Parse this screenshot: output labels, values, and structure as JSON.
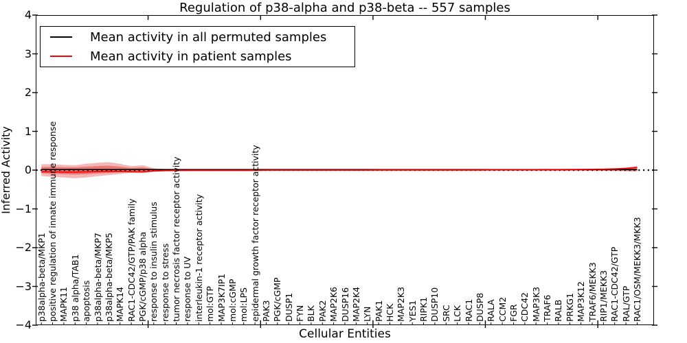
{
  "title": "Regulation of p38-alpha and p38-beta -- 557 samples",
  "axes": {
    "x_label": "Cellular Entities",
    "y_label": "Inferred Activity",
    "y_ticks": [
      "4",
      "3",
      "2",
      "1",
      "0",
      "−1",
      "−2",
      "−3",
      "−4"
    ]
  },
  "legend": {
    "items": [
      {
        "label": "Mean activity in all permuted samples",
        "color": "#000000"
      },
      {
        "label": "Mean activity in patient samples",
        "color": "#ff0000"
      }
    ]
  },
  "chart_data": {
    "type": "line",
    "title": "Regulation of p38-alpha and p38-beta -- 557 samples",
    "xlabel": "Cellular Entities",
    "ylabel": "Inferred Activity",
    "ylim": [
      -4,
      4
    ],
    "xlim": [
      0,
      55
    ],
    "x_major_ticks": [
      10,
      20,
      30,
      40,
      50
    ],
    "grid": false,
    "legend_position": "upper left",
    "zero_line_style": "dotted",
    "categories": [
      "p38alpha-beta/MKP1",
      "positive regulation of innate immune response",
      "MAPK11",
      "p38 alpha/TAB1",
      "apoptosis",
      "p38alpha-beta/MKP7",
      "p38alpha-beta/MKP5",
      "MAPK14",
      "RAC1-CDC42/GTP/PAK family",
      "PGK/cGMP/p38 alpha",
      "response to insulin stimulus",
      "response to stress",
      "tumor necrosis factor receptor activity",
      "response to UV",
      "interleukin-1 receptor activity",
      "mol:GTP",
      "MAP3K7IP1",
      "mol:cGMP",
      "mol:LPS",
      "epidermal growth factor receptor activity",
      "PAK3",
      "PGK/cGMP",
      "DUSP1",
      "FYN",
      "BLK",
      "PAK2",
      "MAP2K6",
      "DUSP16",
      "MAP2K4",
      "LYN",
      "PAK1",
      "HCK",
      "MAP2K3",
      "YES1",
      "RIPK1",
      "DUSP10",
      "SRC",
      "LCK",
      "RAC1",
      "DUSP8",
      "RALA",
      "CCM2",
      "FGR",
      "CDC42",
      "MAP3K3",
      "TRAF6",
      "RALB",
      "PRKG1",
      "MAP3K12",
      "TRAF6/MEKK3",
      "RIP1/MEKK3",
      "RAC1-CDC42/GTP",
      "RAL/GTP",
      "RAC1/OSM/MEKK3/MKK3"
    ],
    "series": [
      {
        "name": "Mean activity in all permuted samples",
        "color": "#000000",
        "values": [
          0.015,
          0.015,
          0.015,
          0.015,
          0.015,
          0.015,
          0.015,
          0.015,
          0.015,
          0.015,
          0.015,
          0.015,
          0.015,
          0.015,
          0.015,
          0.015,
          0.015,
          0.015,
          0.015,
          0.015,
          0.015,
          0.015,
          0.015,
          0.015,
          0.015,
          0.015,
          0.015,
          0.015,
          0.015,
          0.015,
          0.015,
          0.015,
          0.015,
          0.015,
          0.015,
          0.015,
          0.015,
          0.015,
          0.015,
          0.015,
          0.015,
          0.015,
          0.015,
          0.015,
          0.015,
          0.015,
          0.015,
          0.015,
          0.015,
          0.015,
          0.015,
          0.015,
          0.015,
          0.015
        ]
      },
      {
        "name": "Mean activity in patient samples",
        "color": "#ff0000",
        "values": [
          -0.04,
          -0.045,
          -0.05,
          -0.05,
          -0.045,
          -0.035,
          -0.03,
          -0.035,
          -0.04,
          -0.045,
          -0.02,
          -0.01,
          -0.008,
          -0.005,
          -0.005,
          -0.005,
          -0.005,
          -0.005,
          -0.005,
          -0.005,
          0,
          0,
          0,
          0,
          0,
          0,
          0,
          0,
          0,
          0,
          0.005,
          0.005,
          0.005,
          0.005,
          0.005,
          0.005,
          0.005,
          0.005,
          0.005,
          0.005,
          0.01,
          0.01,
          0.01,
          0.01,
          0.01,
          0.012,
          0.012,
          0.015,
          0.018,
          0.02,
          0.025,
          0.032,
          0.045,
          0.07
        ]
      }
    ],
    "bands": {
      "fill_outer": "rgba(227,66,66,0.38)",
      "fill_inner": "rgba(219,44,44,0.46)",
      "outer_upper": [
        0.15,
        0.155,
        0.135,
        0.125,
        0.165,
        0.19,
        0.205,
        0.165,
        0.105,
        0.125,
        0.05,
        0.03,
        0.025,
        0.025,
        0.02,
        0.02,
        0.02,
        0.02,
        0.02,
        0.02,
        0.02,
        0.02,
        0.02,
        0.02,
        0.02,
        0.02,
        0.02,
        0.02,
        0.02,
        0.02,
        0.02,
        0.02,
        0.02,
        0.02,
        0.02,
        0.02,
        0.02,
        0.02,
        0.02,
        0.02,
        0.02,
        0.02,
        0.02,
        0.02,
        0.02,
        0.02,
        0.02,
        0.02,
        0.02,
        0.02,
        0.03,
        0.04,
        0.06,
        0.1
      ],
      "outer_lower": [
        -0.15,
        -0.175,
        -0.19,
        -0.21,
        -0.19,
        -0.155,
        -0.13,
        -0.1,
        -0.065,
        -0.08,
        -0.045,
        -0.03,
        -0.025,
        -0.022,
        -0.02,
        -0.02,
        -0.02,
        -0.02,
        -0.02,
        -0.02,
        -0.02,
        -0.02,
        -0.02,
        -0.02,
        -0.02,
        -0.02,
        -0.02,
        -0.02,
        -0.02,
        -0.02,
        -0.02,
        -0.02,
        -0.02,
        -0.02,
        -0.02,
        -0.02,
        -0.02,
        -0.02,
        -0.02,
        -0.02,
        -0.02,
        -0.02,
        -0.02,
        -0.02,
        -0.02,
        -0.02,
        -0.02,
        -0.02,
        -0.02,
        -0.02,
        -0.022,
        -0.025,
        -0.03,
        -0.04
      ],
      "inner_upper": [
        0.08,
        0.085,
        0.075,
        0.07,
        0.09,
        0.105,
        0.115,
        0.09,
        0.055,
        0.07,
        0.03,
        0.018,
        0.014,
        0.013,
        0.012,
        0.012,
        0.012,
        0.012,
        0.012,
        0.012,
        0.012,
        0.012,
        0.012,
        0.012,
        0.012,
        0.012,
        0.012,
        0.012,
        0.012,
        0.012,
        0.012,
        0.012,
        0.012,
        0.012,
        0.012,
        0.012,
        0.012,
        0.012,
        0.012,
        0.012,
        0.012,
        0.012,
        0.012,
        0.012,
        0.012,
        0.012,
        0.012,
        0.012,
        0.012,
        0.012,
        0.018,
        0.022,
        0.035,
        0.055
      ],
      "inner_lower": [
        -0.08,
        -0.095,
        -0.105,
        -0.115,
        -0.105,
        -0.085,
        -0.07,
        -0.055,
        -0.04,
        -0.045,
        -0.025,
        -0.018,
        -0.014,
        -0.013,
        -0.012,
        -0.012,
        -0.012,
        -0.012,
        -0.012,
        -0.012,
        -0.012,
        -0.012,
        -0.012,
        -0.012,
        -0.012,
        -0.012,
        -0.012,
        -0.012,
        -0.012,
        -0.012,
        -0.012,
        -0.012,
        -0.012,
        -0.012,
        -0.012,
        -0.012,
        -0.012,
        -0.012,
        -0.012,
        -0.012,
        -0.012,
        -0.012,
        -0.012,
        -0.012,
        -0.012,
        -0.012,
        -0.012,
        -0.012,
        -0.012,
        -0.012,
        -0.013,
        -0.014,
        -0.017,
        -0.022
      ]
    }
  }
}
